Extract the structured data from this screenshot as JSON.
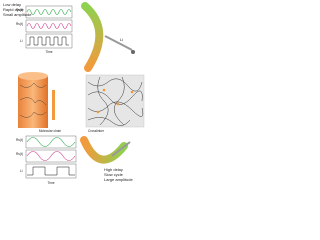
{
  "top_panel": {
    "notes": [
      "Low delay",
      "Rapid cycle",
      "Small amplitude"
    ],
    "signal_labels": [
      "Rs(t)",
      "Rs(t)",
      "Li"
    ],
    "axis_label": "Time",
    "light_label": "Li"
  },
  "middle_panel": {
    "labels": [
      "Molecular chain",
      "Crosslinker"
    ]
  },
  "bottom_panel": {
    "notes": [
      "High delay",
      "Slow cycle",
      "Large amplitude"
    ],
    "signal_labels": [
      "Rs(t)",
      "Rs(t)",
      "Li"
    ],
    "axis_label": "Time"
  }
}
